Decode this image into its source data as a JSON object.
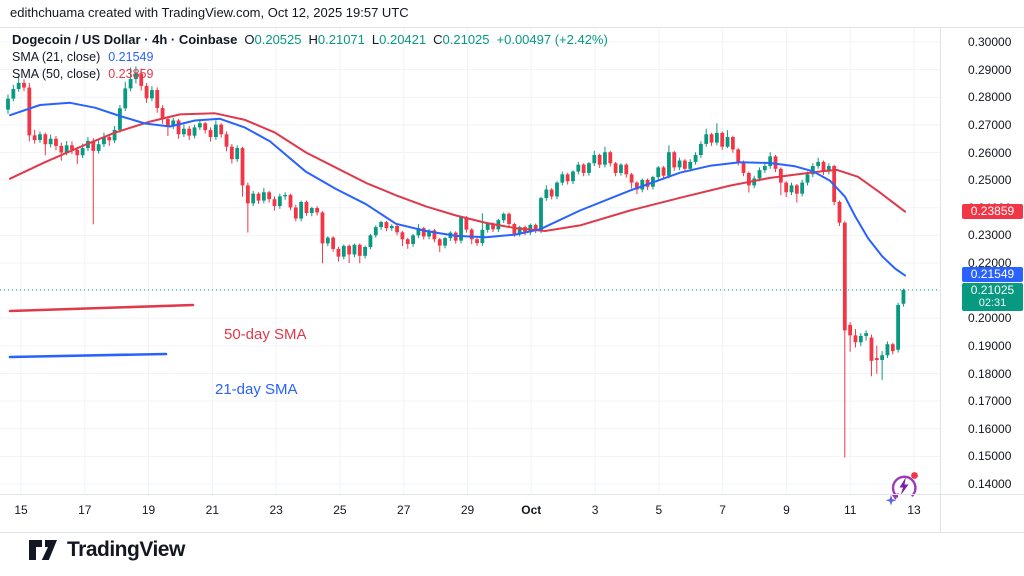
{
  "attribution": "edithchuama created with TradingView.com, Oct 12, 2025 19:57 UTC",
  "legend": {
    "title": "Dogecoin / US Dollar · 4h · Coinbase",
    "ohlc": {
      "o_label": "O",
      "o": "0.20525",
      "h_label": "H",
      "h": "0.21071",
      "l_label": "L",
      "l": "0.20421",
      "c_label": "C",
      "c": "0.21025",
      "change": "+0.00497 (+2.42%)"
    },
    "sma21_label": "SMA (21, close)",
    "sma21_value": "0.21549",
    "sma50_label": "SMA (50, close)",
    "sma50_value": "0.23859"
  },
  "annotations": {
    "sma50_label": "50-day SMA",
    "sma21_label": "21-day SMA"
  },
  "price_scale": {
    "labels": [
      "0.30000",
      "0.29000",
      "0.28000",
      "0.27000",
      "0.26000",
      "0.25000",
      "0.24000",
      "0.23000",
      "0.22000",
      "0.21000",
      "0.20000",
      "0.19000",
      "0.18000",
      "0.17000",
      "0.16000",
      "0.15000",
      "0.14000"
    ],
    "badges": [
      {
        "value": "0.23859",
        "price": 0.23859,
        "color": "#f23645"
      },
      {
        "value": "0.21549",
        "price": 0.21549,
        "color": "#2962ff"
      },
      {
        "value": "0.21025",
        "price": 0.21025,
        "color": "#089981",
        "countdown": "02:31"
      }
    ]
  },
  "time_axis": {
    "labels": [
      "15",
      "17",
      "19",
      "21",
      "23",
      "25",
      "27",
      "29",
      "Oct",
      "3",
      "5",
      "7",
      "9",
      "11",
      "13"
    ]
  },
  "logo": {
    "text": "TradingView"
  },
  "colors": {
    "up": "#089981",
    "down": "#f23645",
    "sma21": "#2962ff",
    "sma50": "#e0394b",
    "grid": "#f0f3fa",
    "frame": "#e0e3eb",
    "last_price_line": "#089981"
  },
  "chart_data": {
    "type": "candlestick",
    "title": "Dogecoin / US Dollar · 4h · Coinbase",
    "ylim": [
      0.14,
      0.3
    ],
    "y_step": 0.01,
    "grid": true,
    "time_labels": [
      "15",
      "17",
      "19",
      "21",
      "23",
      "25",
      "27",
      "29",
      "Oct",
      "3",
      "5",
      "7",
      "9",
      "11",
      "13"
    ],
    "last_price": 0.21025,
    "last_candle_ohlc": {
      "o": 0.20525,
      "h": 0.21071,
      "l": 0.20421,
      "c": 0.21025
    },
    "change_abs": 0.00497,
    "change_pct": 2.42,
    "sma21_last": 0.21549,
    "sma50_last": 0.23859,
    "candles": [
      [
        0.2755,
        0.281,
        0.274,
        0.2795
      ],
      [
        0.2795,
        0.2845,
        0.2785,
        0.283
      ],
      [
        0.283,
        0.2872,
        0.282,
        0.2852
      ],
      [
        0.2852,
        0.2865,
        0.2822,
        0.2835
      ],
      [
        0.2835,
        0.2852,
        0.264,
        0.2662
      ],
      [
        0.2662,
        0.2682,
        0.2632,
        0.2645
      ],
      [
        0.2645,
        0.2676,
        0.2635,
        0.2666
      ],
      [
        0.2666,
        0.2672,
        0.259,
        0.263
      ],
      [
        0.263,
        0.2665,
        0.2618,
        0.265
      ],
      [
        0.265,
        0.266,
        0.2608,
        0.2624
      ],
      [
        0.2624,
        0.2636,
        0.257,
        0.26
      ],
      [
        0.26,
        0.2642,
        0.259,
        0.2626
      ],
      [
        0.2626,
        0.264,
        0.2594,
        0.261
      ],
      [
        0.261,
        0.262,
        0.2558,
        0.259
      ],
      [
        0.259,
        0.2632,
        0.258,
        0.2616
      ],
      [
        0.2616,
        0.2656,
        0.2606,
        0.2642
      ],
      [
        0.2642,
        0.2652,
        0.234,
        0.2606
      ],
      [
        0.2606,
        0.2645,
        0.2596,
        0.263
      ],
      [
        0.263,
        0.2672,
        0.262,
        0.2656
      ],
      [
        0.2656,
        0.2666,
        0.2624,
        0.2644
      ],
      [
        0.2644,
        0.2696,
        0.2634,
        0.2682
      ],
      [
        0.2682,
        0.2772,
        0.2672,
        0.276
      ],
      [
        0.276,
        0.2856,
        0.275,
        0.2832
      ],
      [
        0.2832,
        0.2908,
        0.2822,
        0.2866
      ],
      [
        0.2866,
        0.2912,
        0.285,
        0.2886
      ],
      [
        0.2886,
        0.2904,
        0.2824,
        0.2841
      ],
      [
        0.2841,
        0.2851,
        0.278,
        0.2796
      ],
      [
        0.2796,
        0.284,
        0.2786,
        0.2826
      ],
      [
        0.2826,
        0.2836,
        0.2744,
        0.2761
      ],
      [
        0.2761,
        0.2771,
        0.2704,
        0.2721
      ],
      [
        0.2721,
        0.2731,
        0.266,
        0.2695
      ],
      [
        0.2695,
        0.2726,
        0.2685,
        0.2716
      ],
      [
        0.2716,
        0.2721,
        0.265,
        0.2666
      ],
      [
        0.2666,
        0.2701,
        0.2656,
        0.2686
      ],
      [
        0.2686,
        0.2696,
        0.2645,
        0.2661
      ],
      [
        0.2661,
        0.2701,
        0.2651,
        0.2691
      ],
      [
        0.2691,
        0.2716,
        0.2681,
        0.2706
      ],
      [
        0.2706,
        0.2711,
        0.2669,
        0.2681
      ],
      [
        0.2681,
        0.2691,
        0.264,
        0.2656
      ],
      [
        0.2656,
        0.2716,
        0.2646,
        0.2701
      ],
      [
        0.2701,
        0.2706,
        0.2654,
        0.2666
      ],
      [
        0.2666,
        0.2676,
        0.2604,
        0.2621
      ],
      [
        0.2621,
        0.2631,
        0.256,
        0.2576
      ],
      [
        0.2576,
        0.2626,
        0.2566,
        0.2616
      ],
      [
        0.2616,
        0.2621,
        0.244,
        0.2481
      ],
      [
        0.2481,
        0.2491,
        0.231,
        0.2416
      ],
      [
        0.2416,
        0.2461,
        0.2406,
        0.2451
      ],
      [
        0.2451,
        0.2456,
        0.2414,
        0.2426
      ],
      [
        0.2426,
        0.2471,
        0.2416,
        0.2456
      ],
      [
        0.2456,
        0.2461,
        0.2419,
        0.2431
      ],
      [
        0.2431,
        0.2441,
        0.239,
        0.2406
      ],
      [
        0.2406,
        0.2451,
        0.2396,
        0.2441
      ],
      [
        0.2441,
        0.2456,
        0.2429,
        0.2446
      ],
      [
        0.2446,
        0.2451,
        0.2391,
        0.2401
      ],
      [
        0.2401,
        0.2411,
        0.2351,
        0.2361
      ],
      [
        0.2361,
        0.2426,
        0.2351,
        0.2421
      ],
      [
        0.2421,
        0.2426,
        0.2371,
        0.2381
      ],
      [
        0.2381,
        0.2404,
        0.2369,
        0.2399
      ],
      [
        0.2399,
        0.2406,
        0.2372,
        0.2383
      ],
      [
        0.2383,
        0.2388,
        0.2199,
        0.2271
      ],
      [
        0.2271,
        0.2297,
        0.2261,
        0.2292
      ],
      [
        0.2292,
        0.2297,
        0.2241,
        0.2251
      ],
      [
        0.2251,
        0.2259,
        0.2205,
        0.2223
      ],
      [
        0.2223,
        0.2267,
        0.2213,
        0.2262
      ],
      [
        0.2262,
        0.2267,
        0.22,
        0.2231
      ],
      [
        0.2231,
        0.227,
        0.2221,
        0.2266
      ],
      [
        0.2266,
        0.2271,
        0.2199,
        0.2226
      ],
      [
        0.2226,
        0.2263,
        0.2216,
        0.2258
      ],
      [
        0.2258,
        0.2305,
        0.225,
        0.23
      ],
      [
        0.23,
        0.2336,
        0.2292,
        0.233
      ],
      [
        0.233,
        0.2353,
        0.232,
        0.2348
      ],
      [
        0.2348,
        0.2353,
        0.2315,
        0.2326
      ],
      [
        0.2326,
        0.234,
        0.2316,
        0.2334
      ],
      [
        0.2334,
        0.2339,
        0.23,
        0.2311
      ],
      [
        0.2311,
        0.2316,
        0.2261,
        0.2286
      ],
      [
        0.2286,
        0.2291,
        0.2251,
        0.2269
      ],
      [
        0.2269,
        0.2305,
        0.2259,
        0.23
      ],
      [
        0.23,
        0.2341,
        0.229,
        0.2326
      ],
      [
        0.2326,
        0.2331,
        0.2285,
        0.2296
      ],
      [
        0.2296,
        0.2323,
        0.2286,
        0.2318
      ],
      [
        0.2318,
        0.2323,
        0.2275,
        0.2286
      ],
      [
        0.2286,
        0.2291,
        0.224,
        0.2263
      ],
      [
        0.2263,
        0.2295,
        0.2253,
        0.229
      ],
      [
        0.229,
        0.2315,
        0.228,
        0.231
      ],
      [
        0.231,
        0.2315,
        0.227,
        0.2281
      ],
      [
        0.2281,
        0.237,
        0.2271,
        0.2365
      ],
      [
        0.2365,
        0.237,
        0.231,
        0.2321
      ],
      [
        0.2321,
        0.2326,
        0.2268,
        0.2286
      ],
      [
        0.2286,
        0.2291,
        0.2262,
        0.2272
      ],
      [
        0.2272,
        0.238,
        0.2262,
        0.232
      ],
      [
        0.232,
        0.2347,
        0.231,
        0.2342
      ],
      [
        0.2342,
        0.2347,
        0.2312,
        0.2322
      ],
      [
        0.2322,
        0.236,
        0.2312,
        0.2355
      ],
      [
        0.2355,
        0.2383,
        0.2345,
        0.2378
      ],
      [
        0.2378,
        0.2383,
        0.233,
        0.2341
      ],
      [
        0.2341,
        0.2346,
        0.2295,
        0.2306
      ],
      [
        0.2306,
        0.2335,
        0.2296,
        0.233
      ],
      [
        0.233,
        0.2335,
        0.23,
        0.2311
      ],
      [
        0.2311,
        0.2343,
        0.2301,
        0.2338
      ],
      [
        0.2338,
        0.2343,
        0.2308,
        0.2318
      ],
      [
        0.2318,
        0.244,
        0.2308,
        0.2435
      ],
      [
        0.2435,
        0.2481,
        0.2425,
        0.2466
      ],
      [
        0.2466,
        0.2471,
        0.243,
        0.2441
      ],
      [
        0.2441,
        0.2496,
        0.2431,
        0.2491
      ],
      [
        0.2491,
        0.2531,
        0.2481,
        0.2521
      ],
      [
        0.2521,
        0.2526,
        0.2484,
        0.2496
      ],
      [
        0.2496,
        0.2536,
        0.2486,
        0.2531
      ],
      [
        0.2531,
        0.2566,
        0.2521,
        0.2556
      ],
      [
        0.2556,
        0.2561,
        0.2514,
        0.2526
      ],
      [
        0.2526,
        0.2566,
        0.2516,
        0.2561
      ],
      [
        0.2561,
        0.2606,
        0.2551,
        0.2591
      ],
      [
        0.2591,
        0.2596,
        0.2544,
        0.2556
      ],
      [
        0.2556,
        0.2621,
        0.2546,
        0.2601
      ],
      [
        0.2601,
        0.2606,
        0.2549,
        0.2561
      ],
      [
        0.2561,
        0.2566,
        0.2514,
        0.2526
      ],
      [
        0.2526,
        0.2561,
        0.2516,
        0.2556
      ],
      [
        0.2556,
        0.2561,
        0.2509,
        0.2521
      ],
      [
        0.2521,
        0.2526,
        0.2469,
        0.2491
      ],
      [
        0.2491,
        0.2496,
        0.2449,
        0.2466
      ],
      [
        0.2466,
        0.2506,
        0.2456,
        0.2501
      ],
      [
        0.2501,
        0.2506,
        0.2464,
        0.2476
      ],
      [
        0.2476,
        0.2516,
        0.2466,
        0.2511
      ],
      [
        0.2511,
        0.2551,
        0.2501,
        0.2546
      ],
      [
        0.2546,
        0.2551,
        0.2504,
        0.2516
      ],
      [
        0.2516,
        0.2626,
        0.2506,
        0.2601
      ],
      [
        0.2601,
        0.2606,
        0.2534,
        0.2546
      ],
      [
        0.2546,
        0.2581,
        0.2536,
        0.2571
      ],
      [
        0.2571,
        0.2576,
        0.2529,
        0.2541
      ],
      [
        0.2541,
        0.2576,
        0.2531,
        0.2566
      ],
      [
        0.2566,
        0.2601,
        0.2556,
        0.2591
      ],
      [
        0.2591,
        0.2641,
        0.2581,
        0.2631
      ],
      [
        0.2631,
        0.2686,
        0.2621,
        0.2666
      ],
      [
        0.2666,
        0.2671,
        0.2624,
        0.2636
      ],
      [
        0.2636,
        0.2706,
        0.2626,
        0.2671
      ],
      [
        0.2671,
        0.2676,
        0.2609,
        0.2621
      ],
      [
        0.2621,
        0.2681,
        0.2616,
        0.2656
      ],
      [
        0.2656,
        0.2661,
        0.2599,
        0.2611
      ],
      [
        0.2611,
        0.2616,
        0.2553,
        0.2566
      ],
      [
        0.2566,
        0.2571,
        0.2514,
        0.2526
      ],
      [
        0.2526,
        0.2531,
        0.2455,
        0.2481
      ],
      [
        0.2481,
        0.2516,
        0.2471,
        0.2506
      ],
      [
        0.2506,
        0.2546,
        0.2496,
        0.2536
      ],
      [
        0.2536,
        0.2561,
        0.2526,
        0.2551
      ],
      [
        0.2551,
        0.2601,
        0.2541,
        0.2586
      ],
      [
        0.2586,
        0.2591,
        0.2529,
        0.2541
      ],
      [
        0.2541,
        0.2546,
        0.2445,
        0.2491
      ],
      [
        0.2491,
        0.2496,
        0.2439,
        0.2456
      ],
      [
        0.2456,
        0.2491,
        0.2446,
        0.2481
      ],
      [
        0.2481,
        0.2486,
        0.2419,
        0.2451
      ],
      [
        0.2451,
        0.2501,
        0.2441,
        0.2491
      ],
      [
        0.2491,
        0.2531,
        0.2481,
        0.2521
      ],
      [
        0.2521,
        0.2561,
        0.2511,
        0.2551
      ],
      [
        0.2551,
        0.2581,
        0.2541,
        0.2566
      ],
      [
        0.2566,
        0.2571,
        0.2519,
        0.2531
      ],
      [
        0.2531,
        0.2561,
        0.2521,
        0.2551
      ],
      [
        0.2551,
        0.2556,
        0.2409,
        0.2421
      ],
      [
        0.2421,
        0.2426,
        0.2334,
        0.2346
      ],
      [
        0.2346,
        0.2351,
        0.1496,
        0.1956
      ],
      [
        0.1976,
        0.1986,
        0.1879,
        0.1938
      ],
      [
        0.1938,
        0.1961,
        0.1894,
        0.1913
      ],
      [
        0.1913,
        0.1946,
        0.1899,
        0.1936
      ],
      [
        0.1936,
        0.1956,
        0.1919,
        0.1946
      ],
      [
        0.193,
        0.1941,
        0.179,
        0.1846
      ],
      [
        0.1856,
        0.1901,
        0.1799,
        0.1849
      ],
      [
        0.1849,
        0.1881,
        0.1777,
        0.1866
      ],
      [
        0.1866,
        0.1916,
        0.1856,
        0.1906
      ],
      [
        0.1906,
        0.1911,
        0.1869,
        0.1881
      ],
      [
        0.1886,
        0.2056,
        0.1876,
        0.2048
      ],
      [
        0.20525,
        0.21071,
        0.20421,
        0.21025
      ]
    ],
    "sma50_points": [
      [
        10,
        0.2505
      ],
      [
        45,
        0.2565
      ],
      [
        80,
        0.262
      ],
      [
        115,
        0.2672
      ],
      [
        150,
        0.2712
      ],
      [
        180,
        0.2738
      ],
      [
        215,
        0.2742
      ],
      [
        245,
        0.2718
      ],
      [
        275,
        0.2672
      ],
      [
        306,
        0.26
      ],
      [
        336,
        0.2545
      ],
      [
        366,
        0.249
      ],
      [
        396,
        0.2445
      ],
      [
        426,
        0.2405
      ],
      [
        456,
        0.2372
      ],
      [
        486,
        0.2345
      ],
      [
        516,
        0.2326
      ],
      [
        545,
        0.2316
      ],
      [
        580,
        0.2336
      ],
      [
        630,
        0.239
      ],
      [
        680,
        0.2436
      ],
      [
        730,
        0.248
      ],
      [
        770,
        0.2508
      ],
      [
        800,
        0.2522
      ],
      [
        822,
        0.2532
      ],
      [
        837,
        0.2537
      ],
      [
        858,
        0.2512
      ],
      [
        880,
        0.2455
      ],
      [
        905,
        0.2386
      ]
    ],
    "sma21_points": [
      [
        10,
        0.2735
      ],
      [
        40,
        0.2772
      ],
      [
        70,
        0.278
      ],
      [
        95,
        0.2762
      ],
      [
        120,
        0.2732
      ],
      [
        145,
        0.2705
      ],
      [
        170,
        0.2694
      ],
      [
        195,
        0.2716
      ],
      [
        220,
        0.2722
      ],
      [
        245,
        0.269
      ],
      [
        270,
        0.264
      ],
      [
        306,
        0.253
      ],
      [
        336,
        0.2468
      ],
      [
        366,
        0.2413
      ],
      [
        396,
        0.2342
      ],
      [
        426,
        0.2316
      ],
      [
        456,
        0.2298
      ],
      [
        486,
        0.2293
      ],
      [
        516,
        0.2303
      ],
      [
        540,
        0.2322
      ],
      [
        580,
        0.239
      ],
      [
        630,
        0.2462
      ],
      [
        680,
        0.2527
      ],
      [
        710,
        0.2552
      ],
      [
        740,
        0.2565
      ],
      [
        770,
        0.2562
      ],
      [
        795,
        0.255
      ],
      [
        813,
        0.2532
      ],
      [
        830,
        0.2498
      ],
      [
        845,
        0.244
      ],
      [
        855,
        0.237
      ],
      [
        868,
        0.229
      ],
      [
        882,
        0.2225
      ],
      [
        895,
        0.218
      ],
      [
        905,
        0.2155
      ]
    ]
  }
}
